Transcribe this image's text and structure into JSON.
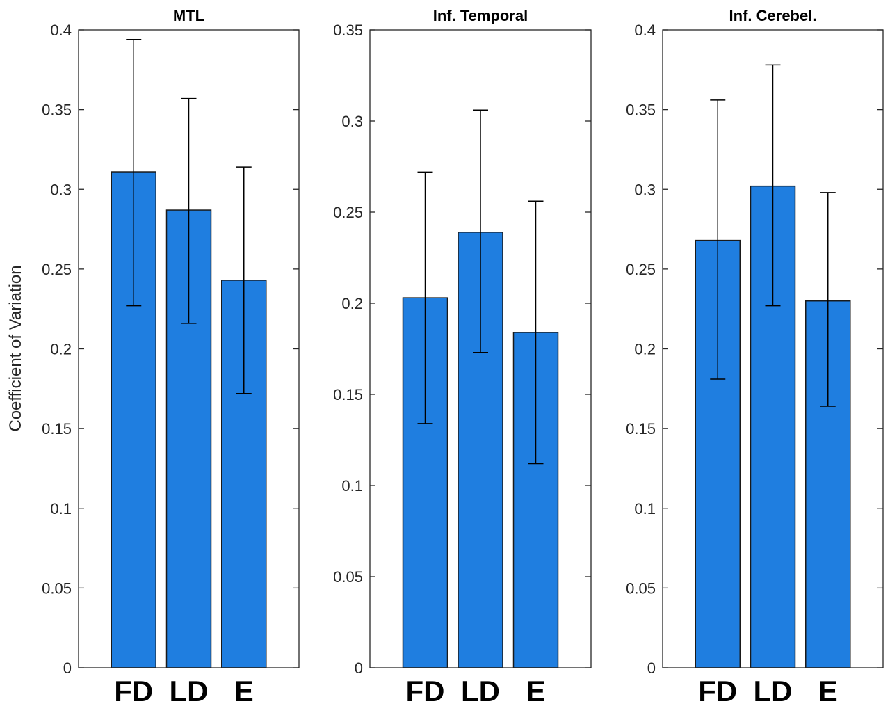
{
  "chart_data": {
    "type": "bar",
    "ylabel": "Coefficient of Variation",
    "bar_color": "#1f7ee0",
    "panels": [
      {
        "title": "MTL",
        "categories": [
          "FD",
          "LD",
          "E"
        ],
        "values": [
          0.311,
          0.287,
          0.243
        ],
        "error_low": [
          0.227,
          0.216,
          0.172
        ],
        "error_high": [
          0.394,
          0.357,
          0.314
        ],
        "ylim": [
          0,
          0.4
        ],
        "yticks": [
          0,
          0.05,
          0.1,
          0.15,
          0.2,
          0.25,
          0.3,
          0.35,
          0.4
        ],
        "ytick_labels": [
          "0",
          "0.05",
          "0.1",
          "0.15",
          "0.2",
          "0.25",
          "0.3",
          "0.35",
          "0.4"
        ]
      },
      {
        "title": "Inf. Temporal",
        "categories": [
          "FD",
          "LD",
          "E"
        ],
        "values": [
          0.203,
          0.239,
          0.184
        ],
        "error_low": [
          0.134,
          0.173,
          0.112
        ],
        "error_high": [
          0.272,
          0.306,
          0.256
        ],
        "ylim": [
          0,
          0.35
        ],
        "yticks": [
          0,
          0.05,
          0.1,
          0.15,
          0.2,
          0.25,
          0.3,
          0.35
        ],
        "ytick_labels": [
          "0",
          "0.05",
          "0.1",
          "0.15",
          "0.2",
          "0.25",
          "0.3",
          "0.35"
        ]
      },
      {
        "title": "Inf. Cerebel.",
        "categories": [
          "FD",
          "LD",
          "E"
        ],
        "values": [
          0.268,
          0.302,
          0.23
        ],
        "error_low": [
          0.181,
          0.227,
          0.164
        ],
        "error_high": [
          0.356,
          0.378,
          0.298
        ],
        "ylim": [
          0,
          0.4
        ],
        "yticks": [
          0,
          0.05,
          0.1,
          0.15,
          0.2,
          0.25,
          0.3,
          0.35,
          0.4
        ],
        "ytick_labels": [
          "0",
          "0.05",
          "0.1",
          "0.15",
          "0.2",
          "0.25",
          "0.3",
          "0.35",
          "0.4"
        ]
      }
    ]
  }
}
